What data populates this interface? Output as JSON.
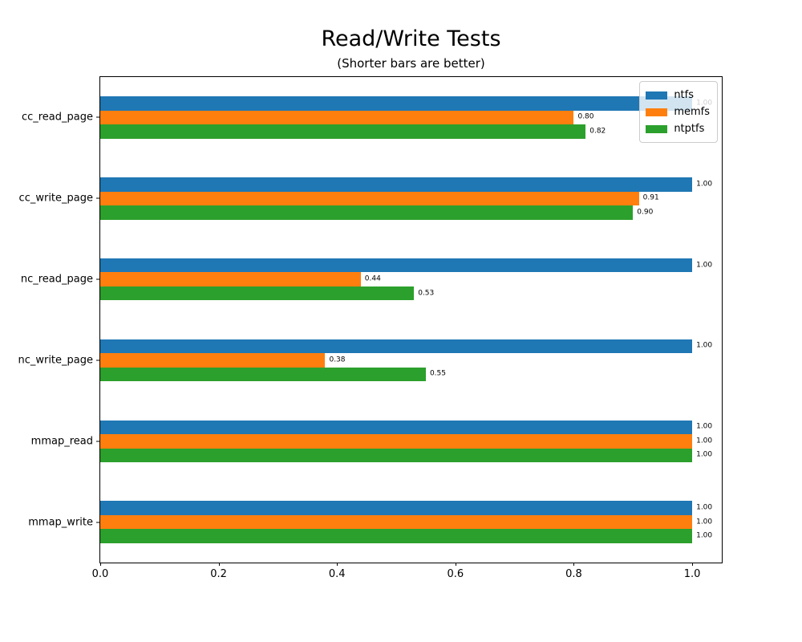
{
  "chart_data": {
    "type": "bar",
    "orientation": "horizontal",
    "title": "Read/Write Tests",
    "subtitle": "(Shorter bars are better)",
    "categories": [
      "cc_read_page",
      "cc_write_page",
      "nc_read_page",
      "nc_write_page",
      "mmap_read",
      "mmap_write"
    ],
    "series": [
      {
        "name": "ntfs",
        "color": "#1f77b4",
        "values": [
          1.0,
          1.0,
          1.0,
          1.0,
          1.0,
          1.0
        ]
      },
      {
        "name": "memfs",
        "color": "#ff7f0e",
        "values": [
          0.8,
          0.91,
          0.44,
          0.38,
          1.0,
          1.0
        ]
      },
      {
        "name": "ntptfs",
        "color": "#2ca02c",
        "values": [
          0.82,
          0.9,
          0.53,
          0.55,
          1.0,
          1.0
        ]
      }
    ],
    "xticks": [
      0.0,
      0.2,
      0.4,
      0.6,
      0.8,
      1.0
    ],
    "xlim": [
      0,
      1.05
    ],
    "grid": false,
    "legend_position": "upper right",
    "bar_label_decimals": 2,
    "xtick_decimals": 1
  }
}
